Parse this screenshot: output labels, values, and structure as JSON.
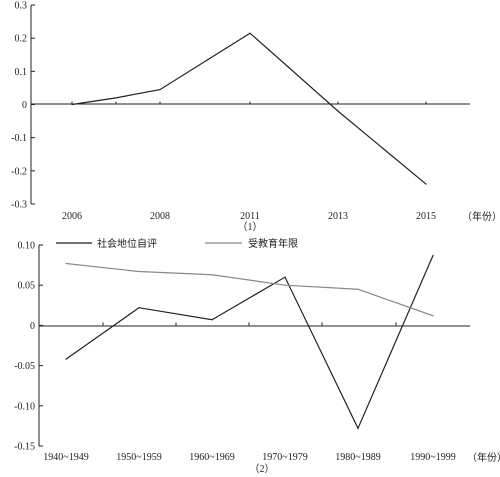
{
  "chart_data": [
    {
      "type": "line",
      "caption": "（1）",
      "x_unit": "（年份）",
      "categories": [
        "2006",
        "2008",
        "2011",
        "2013",
        "2015"
      ],
      "series": [
        {
          "x": [
            "2006",
            "2007",
            "2008",
            "2011",
            "2013",
            "2015"
          ],
          "values": [
            0.0,
            0.02,
            0.045,
            0.215,
            -0.02,
            -0.24
          ],
          "color": "#222222"
        }
      ],
      "ylim": [
        -0.3,
        0.3
      ],
      "yticks": [
        "0.3",
        "0.2",
        "0.1",
        "0",
        "-0.1",
        "-0.2",
        "-0.3"
      ],
      "grid": false
    },
    {
      "type": "line",
      "caption": "（2）",
      "x_unit": "（年份）",
      "categories": [
        "1940~1949",
        "1950~1959",
        "1960~1969",
        "1970~1979",
        "1980~1989",
        "1990~1999"
      ],
      "series": [
        {
          "name": "社会地位自评",
          "color": "#222222",
          "values": [
            -0.042,
            0.022,
            0.007,
            0.06,
            -0.128,
            0.087
          ]
        },
        {
          "name": "受教育年限",
          "color": "#888888",
          "values": [
            0.077,
            0.067,
            0.063,
            0.05,
            0.045,
            0.012
          ]
        }
      ],
      "ylim": [
        -0.15,
        0.1
      ],
      "yticks": [
        "0.10",
        "0.05",
        "0",
        "-0.05",
        "-0.10",
        "-0.15"
      ],
      "legend_position": "top-left",
      "grid": false
    }
  ]
}
